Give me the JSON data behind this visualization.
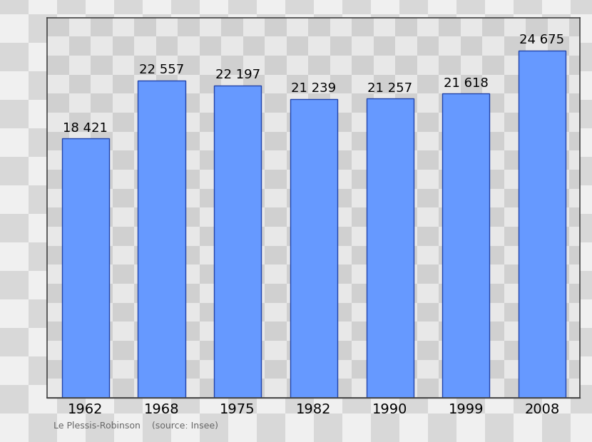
{
  "years": [
    "1962",
    "1968",
    "1975",
    "1982",
    "1990",
    "1999",
    "2008"
  ],
  "values": [
    18421,
    22557,
    22197,
    21239,
    21257,
    21618,
    24675
  ],
  "labels": [
    "18 421",
    "22 557",
    "22 197",
    "21 239",
    "21 257",
    "21 618",
    "24 675"
  ],
  "bar_color": "#6699ff",
  "bar_edge_color": "#2244aa",
  "footer": "Le Plessis-Robinson    (source: Insee)",
  "ylim_min": 0,
  "ylim_max": 27000,
  "label_fontsize": 13,
  "tick_fontsize": 14,
  "footer_fontsize": 9,
  "bar_width": 0.62,
  "checker_light": "#e8e8e8",
  "checker_dark": "#d0d0d0",
  "outer_checker_light": "#f0f0f0",
  "outer_checker_dark": "#d8d8d8",
  "border_color": "#444444"
}
